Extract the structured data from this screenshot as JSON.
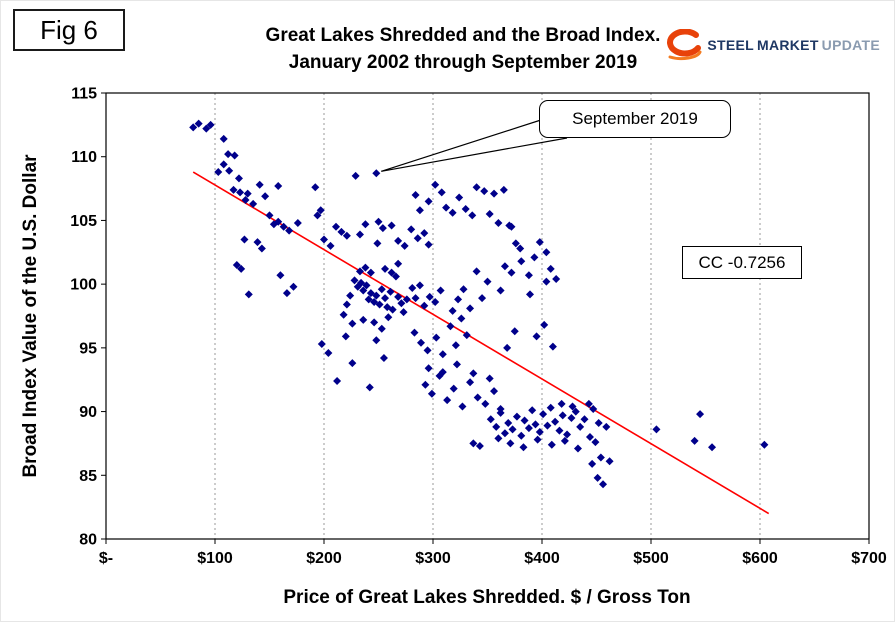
{
  "figure_label": "Fig 6",
  "title": {
    "line1": "Great Lakes Shredded and the Broad Index.",
    "line2": "January 2002 through September 2019"
  },
  "logo": {
    "steel": "STEEL",
    "market": "MARKET",
    "update": "UPDATE"
  },
  "callout": {
    "label": "September 2019"
  },
  "cc_box": {
    "label": "CC -0.7256"
  },
  "chart_data": {
    "type": "scatter",
    "title": "Great Lakes Shredded and the Broad Index. January 2002 through September 2019",
    "xlabel": "Price of Great Lakes Shredded. $ / Gross Ton",
    "ylabel": "Broad Index Value of the U.S. Dollar",
    "xlim": [
      0,
      700
    ],
    "ylim": [
      80,
      115
    ],
    "x_ticks": [
      "$-",
      "$100",
      "$200",
      "$300",
      "$400",
      "$500",
      "$600",
      "$700"
    ],
    "x_tick_values": [
      0,
      100,
      200,
      300,
      400,
      500,
      600,
      700
    ],
    "y_ticks": [
      80,
      85,
      90,
      95,
      100,
      105,
      110,
      115
    ],
    "grid": "vertical-dashed",
    "legend": "none",
    "marker_shape": "diamond",
    "marker_color": "#00008B",
    "trend_line": {
      "color": "#FF0000",
      "points": [
        [
          80,
          108.8
        ],
        [
          608,
          82.0
        ]
      ]
    },
    "highlight_point": [
      248,
      108.7
    ],
    "highlight_label": "September 2019",
    "correlation": "CC -0.7256",
    "points": [
      [
        80,
        112.3
      ],
      [
        85,
        112.6
      ],
      [
        92,
        112.2
      ],
      [
        96,
        112.5
      ],
      [
        108,
        111.4
      ],
      [
        112,
        110.2
      ],
      [
        108,
        109.4
      ],
      [
        103,
        108.8
      ],
      [
        113,
        108.9
      ],
      [
        118,
        110.1
      ],
      [
        122,
        108.3
      ],
      [
        117,
        107.4
      ],
      [
        123,
        107.2
      ],
      [
        130,
        107.1
      ],
      [
        128,
        106.6
      ],
      [
        135,
        106.3
      ],
      [
        141,
        107.8
      ],
      [
        146,
        106.9
      ],
      [
        158,
        107.7
      ],
      [
        120,
        101.5
      ],
      [
        124,
        101.2
      ],
      [
        131,
        99.2
      ],
      [
        127,
        103.5
      ],
      [
        139,
        103.3
      ],
      [
        143,
        102.8
      ],
      [
        150,
        105.4
      ],
      [
        154,
        104.7
      ],
      [
        158,
        104.9
      ],
      [
        160,
        100.7
      ],
      [
        163,
        104.5
      ],
      [
        168,
        104.2
      ],
      [
        172,
        99.8
      ],
      [
        166,
        99.3
      ],
      [
        176,
        104.8
      ],
      [
        192,
        107.6
      ],
      [
        197,
        105.8
      ],
      [
        194,
        105.4
      ],
      [
        200,
        103.5
      ],
      [
        206,
        103.0
      ],
      [
        211,
        104.5
      ],
      [
        216,
        104.1
      ],
      [
        221,
        103.8
      ],
      [
        229,
        108.5
      ],
      [
        248,
        108.7
      ],
      [
        250,
        104.9
      ],
      [
        254,
        104.4
      ],
      [
        249,
        103.2
      ],
      [
        238,
        104.7
      ],
      [
        233,
        103.9
      ],
      [
        262,
        104.6
      ],
      [
        268,
        103.4
      ],
      [
        274,
        103.0
      ],
      [
        280,
        104.3
      ],
      [
        286,
        103.6
      ],
      [
        292,
        104.0
      ],
      [
        296,
        103.1
      ],
      [
        302,
        107.8
      ],
      [
        308,
        107.2
      ],
      [
        312,
        106.0
      ],
      [
        296,
        106.5
      ],
      [
        288,
        105.8
      ],
      [
        284,
        107.0
      ],
      [
        318,
        105.6
      ],
      [
        324,
        106.8
      ],
      [
        340,
        107.6
      ],
      [
        347,
        107.3
      ],
      [
        356,
        107.1
      ],
      [
        365,
        107.4
      ],
      [
        352,
        105.5
      ],
      [
        330,
        105.9
      ],
      [
        336,
        105.4
      ],
      [
        360,
        104.8
      ],
      [
        370,
        104.6
      ],
      [
        372,
        104.5
      ],
      [
        376,
        103.2
      ],
      [
        380,
        102.8
      ],
      [
        366,
        101.4
      ],
      [
        388,
        100.7
      ],
      [
        393,
        102.1
      ],
      [
        398,
        103.3
      ],
      [
        404,
        102.5
      ],
      [
        408,
        101.2
      ],
      [
        413,
        100.4
      ],
      [
        228,
        100.3
      ],
      [
        231,
        99.8
      ],
      [
        234,
        100.1
      ],
      [
        236,
        99.5
      ],
      [
        239,
        99.9
      ],
      [
        241,
        98.8
      ],
      [
        243,
        99.3
      ],
      [
        246,
        98.6
      ],
      [
        248,
        99.1
      ],
      [
        251,
        98.4
      ],
      [
        253,
        99.6
      ],
      [
        256,
        98.9
      ],
      [
        258,
        98.2
      ],
      [
        261,
        99.4
      ],
      [
        263,
        98.0
      ],
      [
        266,
        100.6
      ],
      [
        268,
        99.0
      ],
      [
        271,
        98.5
      ],
      [
        273,
        97.8
      ],
      [
        276,
        98.8
      ],
      [
        243,
        100.9
      ],
      [
        238,
        101.3
      ],
      [
        233,
        101.0
      ],
      [
        256,
        101.2
      ],
      [
        262,
        100.9
      ],
      [
        268,
        101.6
      ],
      [
        224,
        99.1
      ],
      [
        221,
        98.4
      ],
      [
        218,
        97.6
      ],
      [
        226,
        96.9
      ],
      [
        236,
        97.2
      ],
      [
        246,
        97.0
      ],
      [
        253,
        96.5
      ],
      [
        259,
        97.4
      ],
      [
        281,
        99.7
      ],
      [
        284,
        98.9
      ],
      [
        288,
        99.9
      ],
      [
        292,
        98.3
      ],
      [
        297,
        99.0
      ],
      [
        302,
        98.6
      ],
      [
        307,
        99.5
      ],
      [
        283,
        96.2
      ],
      [
        289,
        95.4
      ],
      [
        295,
        94.8
      ],
      [
        303,
        95.8
      ],
      [
        309,
        94.5
      ],
      [
        316,
        96.7
      ],
      [
        321,
        95.2
      ],
      [
        326,
        97.3
      ],
      [
        331,
        96.0
      ],
      [
        318,
        97.9
      ],
      [
        323,
        98.8
      ],
      [
        328,
        99.6
      ],
      [
        334,
        98.1
      ],
      [
        198,
        95.3
      ],
      [
        204,
        94.6
      ],
      [
        212,
        92.4
      ],
      [
        226,
        93.8
      ],
      [
        248,
        95.6
      ],
      [
        255,
        94.2
      ],
      [
        242,
        91.9
      ],
      [
        220,
        95.9
      ],
      [
        293,
        92.1
      ],
      [
        299,
        91.4
      ],
      [
        306,
        92.8
      ],
      [
        313,
        90.9
      ],
      [
        319,
        91.8
      ],
      [
        327,
        90.4
      ],
      [
        334,
        92.3
      ],
      [
        341,
        91.1
      ],
      [
        348,
        90.6
      ],
      [
        356,
        91.6
      ],
      [
        362,
        90.2
      ],
      [
        296,
        93.4
      ],
      [
        309,
        93.1
      ],
      [
        322,
        93.7
      ],
      [
        337,
        93.0
      ],
      [
        352,
        92.6
      ],
      [
        353,
        89.4
      ],
      [
        358,
        88.8
      ],
      [
        362,
        89.9
      ],
      [
        366,
        88.3
      ],
      [
        369,
        89.1
      ],
      [
        373,
        88.6
      ],
      [
        377,
        89.6
      ],
      [
        381,
        88.1
      ],
      [
        384,
        89.3
      ],
      [
        388,
        88.7
      ],
      [
        391,
        90.1
      ],
      [
        394,
        89.0
      ],
      [
        398,
        88.4
      ],
      [
        401,
        89.8
      ],
      [
        405,
        88.9
      ],
      [
        408,
        90.3
      ],
      [
        412,
        89.2
      ],
      [
        416,
        88.5
      ],
      [
        419,
        89.7
      ],
      [
        423,
        88.2
      ],
      [
        427,
        89.5
      ],
      [
        431,
        90.0
      ],
      [
        435,
        88.8
      ],
      [
        439,
        89.4
      ],
      [
        371,
        87.5
      ],
      [
        383,
        87.2
      ],
      [
        396,
        87.8
      ],
      [
        409,
        87.4
      ],
      [
        421,
        87.7
      ],
      [
        433,
        87.1
      ],
      [
        360,
        87.9
      ],
      [
        418,
        90.6
      ],
      [
        428,
        90.4
      ],
      [
        337,
        87.5
      ],
      [
        343,
        87.3
      ],
      [
        443,
        90.6
      ],
      [
        447,
        90.2
      ],
      [
        452,
        89.1
      ],
      [
        444,
        88.0
      ],
      [
        449,
        87.6
      ],
      [
        454,
        86.4
      ],
      [
        446,
        85.9
      ],
      [
        451,
        84.8
      ],
      [
        456,
        84.3
      ],
      [
        459,
        88.8
      ],
      [
        462,
        86.1
      ],
      [
        505,
        88.6
      ],
      [
        545,
        89.8
      ],
      [
        540,
        87.7
      ],
      [
        556,
        87.2
      ],
      [
        604,
        87.4
      ],
      [
        395,
        95.9
      ],
      [
        402,
        96.8
      ],
      [
        410,
        95.1
      ],
      [
        368,
        95.0
      ],
      [
        375,
        96.3
      ],
      [
        345,
        98.9
      ],
      [
        350,
        100.2
      ],
      [
        362,
        99.5
      ],
      [
        372,
        100.9
      ],
      [
        381,
        101.8
      ],
      [
        389,
        99.2
      ],
      [
        404,
        100.2
      ],
      [
        340,
        101.0
      ]
    ]
  }
}
